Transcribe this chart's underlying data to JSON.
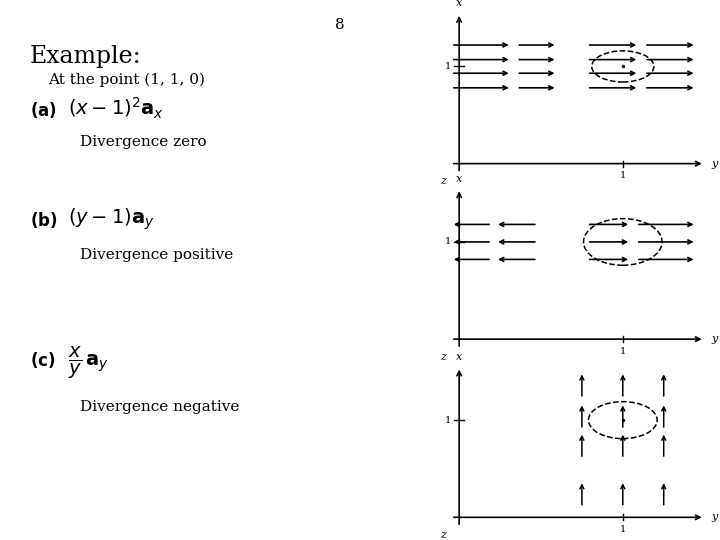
{
  "page_number": "8",
  "bg_color": "#ffffff",
  "text_color": "#000000",
  "title": "Example:",
  "subtitle": "At the point (1, 1, 0)",
  "label_a": "(a)",
  "formula_a": "$(x-1)^2\\,\\mathbf{a}_x$",
  "desc_a": "Divergence zero",
  "label_b": "(b)",
  "formula_b": "$(y-1)\\,\\mathbf{a}_y$",
  "desc_b": "Divergence positive",
  "label_c": "(c)",
  "desc_c": "Divergence negative"
}
